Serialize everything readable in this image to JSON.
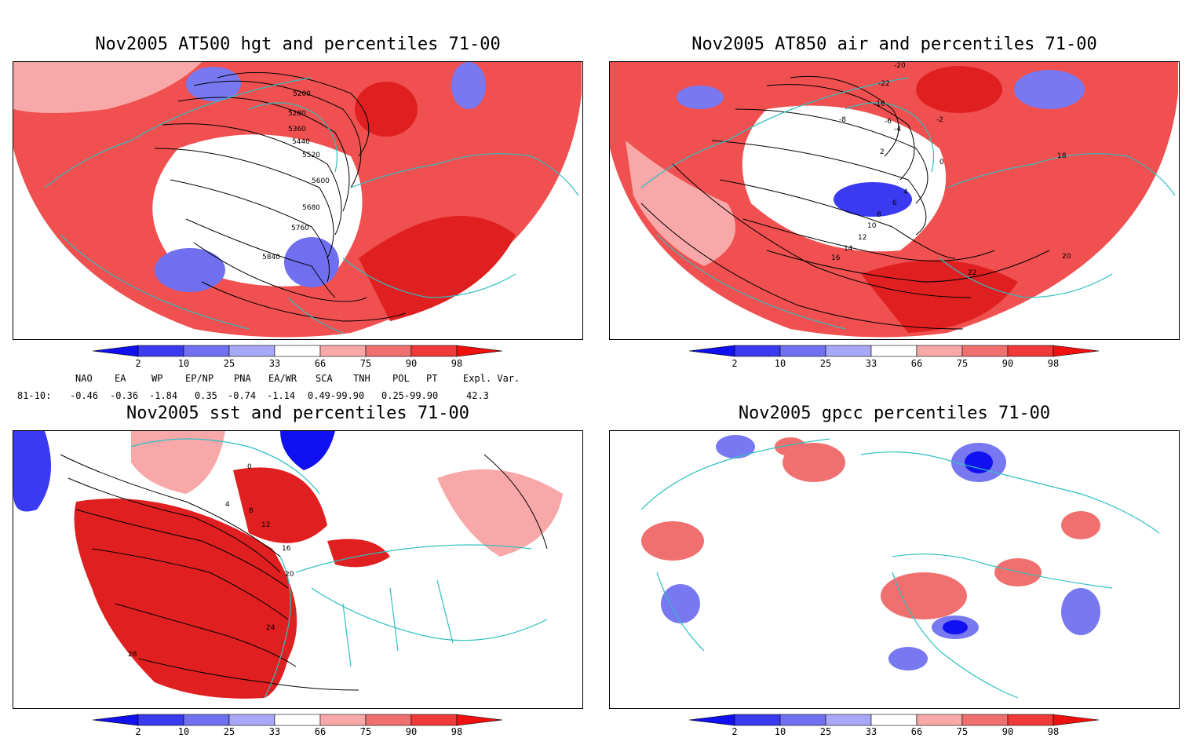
{
  "panels": [
    {
      "title": "Nov2005 AT500 hgt and percentiles 71-00",
      "contours": [
        "5200",
        "5280",
        "5360",
        "5440",
        "5520",
        "5600",
        "5680",
        "5760",
        "5840"
      ]
    },
    {
      "title": "Nov2005 AT850 air and percentiles 71-00",
      "contours": [
        "-20",
        "-22",
        "-16",
        "-8",
        "-6",
        "-4",
        "-2",
        "0",
        "2",
        "4",
        "6",
        "8",
        "10",
        "12",
        "14",
        "16",
        "18",
        "20",
        "22"
      ]
    },
    {
      "title": "Nov2005 sst and percentiles 71-00",
      "contours": [
        "0",
        "4",
        "8",
        "12",
        "16",
        "20",
        "24",
        "28"
      ]
    },
    {
      "title": "Nov2005 gpcc percentiles 71-00",
      "contours": []
    }
  ],
  "colorbar": {
    "labels": [
      "2",
      "10",
      "25",
      "33",
      "66",
      "75",
      "90",
      "98"
    ],
    "colors": [
      "#1010f0",
      "#3a3af0",
      "#7070f0",
      "#a8a8f8",
      "#ffffff",
      "#f8a8a8",
      "#f07070",
      "#f03a3a",
      "#f01010"
    ]
  },
  "teleconnections": {
    "headers": [
      "NAO",
      "EA",
      "WP",
      "EP/NP",
      "PNA",
      "EA/WR",
      "SCA",
      "TNH",
      "POL",
      "PT",
      "Expl. Var."
    ],
    "row_label": "81-10:",
    "values": [
      "-0.46",
      "-0.36",
      "-1.84",
      "0.35",
      "-0.74",
      "-1.14",
      "0.49-99.90",
      "0.25-99.90",
      "42.3"
    ]
  }
}
